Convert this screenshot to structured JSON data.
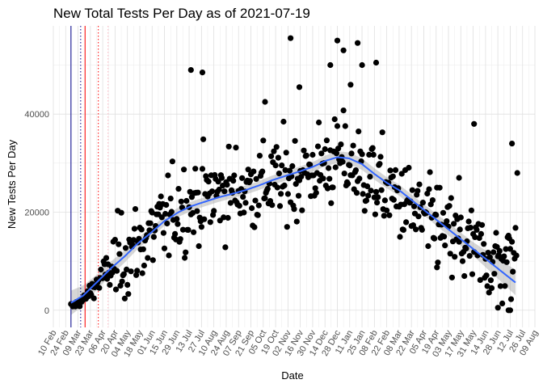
{
  "chart_data": {
    "type": "scatter",
    "title": "New Total Tests Per Day as of 2021-07-19",
    "xlabel": "Date",
    "ylabel": "New Tests Per Day",
    "x_range": [
      "2020-02-10",
      "2021-08-09"
    ],
    "ylim": [
      -3500,
      58000
    ],
    "y_ticks": [
      0,
      20000,
      40000
    ],
    "y_tick_labels": [
      "0",
      "20000",
      "40000"
    ],
    "x_ticks": [
      "2020-02-10",
      "2020-02-24",
      "2020-03-09",
      "2020-03-23",
      "2020-04-06",
      "2020-04-20",
      "2020-05-04",
      "2020-05-18",
      "2020-06-01",
      "2020-06-15",
      "2020-06-29",
      "2020-07-13",
      "2020-07-27",
      "2020-08-10",
      "2020-08-24",
      "2020-09-07",
      "2020-09-21",
      "2020-10-05",
      "2020-10-19",
      "2020-11-02",
      "2020-11-16",
      "2020-11-30",
      "2020-12-14",
      "2020-12-28",
      "2021-01-11",
      "2021-01-25",
      "2021-02-08",
      "2021-02-22",
      "2021-03-08",
      "2021-03-22",
      "2021-04-05",
      "2021-04-19",
      "2021-05-03",
      "2021-05-17",
      "2021-05-31",
      "2021-06-14",
      "2021-06-28",
      "2021-07-12",
      "2021-07-26",
      "2021-08-09"
    ],
    "x_tick_labels": [
      "10 Feb",
      "24 Feb",
      "09 Mar",
      "23 Mar",
      "06 Apr",
      "20 Apr",
      "04 May",
      "18 May",
      "01 Jun",
      "15 Jun",
      "29 Jun",
      "13 Jul",
      "27 Jul",
      "10 Aug",
      "24 Aug",
      "07 Sep",
      "21 Sep",
      "05 Oct",
      "19 Oct",
      "02 Nov",
      "16 Nov",
      "30 Nov",
      "14 Dec",
      "28 Dec",
      "11 Jan",
      "25 Jan",
      "08 Feb",
      "22 Feb",
      "08 Mar",
      "22 Mar",
      "05 Apr",
      "19 Apr",
      "03 May",
      "17 May",
      "31 May",
      "14 Jun",
      "28 Jun",
      "12 Jul",
      "26 Jul",
      "09 Aug"
    ],
    "grid": true,
    "vlines": [
      {
        "date": "2020-03-01",
        "color": "#00008b",
        "style": "solid"
      },
      {
        "date": "2020-03-12",
        "color": "#00008b",
        "style": "dotted"
      },
      {
        "date": "2020-03-17",
        "color": "#ff0000",
        "style": "solid"
      },
      {
        "date": "2020-04-01",
        "color": "#ff0000",
        "style": "dotted"
      },
      {
        "date": "2020-04-12",
        "color": "#ffb6c1",
        "style": "dotted"
      }
    ],
    "point_color": "#000000",
    "smooth_color": "#3366ff",
    "ribbon_color": "#999999",
    "scatter_anchors": [
      [
        "2020-03-01",
        700
      ],
      [
        "2020-03-15",
        2000
      ],
      [
        "2020-04-01",
        6000
      ],
      [
        "2020-05-01",
        11000
      ],
      [
        "2020-06-01",
        15500
      ],
      [
        "2020-07-01",
        20500
      ],
      [
        "2020-08-01",
        23000
      ],
      [
        "2020-09-01",
        24500
      ],
      [
        "2020-10-01",
        25500
      ],
      [
        "2020-11-01",
        26500
      ],
      [
        "2020-12-01",
        28500
      ],
      [
        "2021-01-01",
        31000
      ],
      [
        "2021-02-01",
        27000
      ],
      [
        "2021-03-01",
        23500
      ],
      [
        "2021-04-01",
        19000
      ],
      [
        "2021-05-01",
        15000
      ],
      [
        "2021-06-01",
        12000
      ],
      [
        "2021-07-01",
        9500
      ],
      [
        "2021-07-19",
        11000
      ]
    ],
    "outliers": [
      [
        "2020-07-15",
        49000
      ],
      [
        "2020-07-28",
        48500
      ],
      [
        "2020-11-05",
        55500
      ],
      [
        "2020-12-28",
        55000
      ],
      [
        "2021-01-04",
        53000
      ],
      [
        "2021-01-20",
        54500
      ],
      [
        "2021-01-25",
        50000
      ],
      [
        "2021-02-10",
        50500
      ],
      [
        "2020-12-20",
        50000
      ],
      [
        "2021-01-12",
        46000
      ],
      [
        "2020-11-15",
        45500
      ],
      [
        "2021-06-01",
        38000
      ],
      [
        "2021-07-14",
        34000
      ],
      [
        "2021-07-20",
        28000
      ],
      [
        "2020-10-07",
        42500
      ],
      [
        "2021-06-28",
        500
      ],
      [
        "2021-07-10",
        0
      ],
      [
        "2021-07-12",
        0
      ],
      [
        "2021-05-15",
        27000
      ],
      [
        "2021-04-20",
        25000
      ]
    ],
    "smooth_curve": [
      [
        "2020-03-01",
        1500
      ],
      [
        "2020-03-15",
        3000
      ],
      [
        "2020-04-01",
        6000
      ],
      [
        "2020-04-15",
        8500
      ],
      [
        "2020-05-01",
        11000
      ],
      [
        "2020-05-15",
        13500
      ],
      [
        "2020-06-01",
        16000
      ],
      [
        "2020-06-15",
        18200
      ],
      [
        "2020-07-01",
        20000
      ],
      [
        "2020-07-15",
        21200
      ],
      [
        "2020-08-01",
        22200
      ],
      [
        "2020-08-15",
        23000
      ],
      [
        "2020-09-01",
        23800
      ],
      [
        "2020-09-15",
        24500
      ],
      [
        "2020-10-01",
        25500
      ],
      [
        "2020-10-15",
        26500
      ],
      [
        "2020-11-01",
        27500
      ],
      [
        "2020-11-15",
        28300
      ],
      [
        "2020-12-01",
        29300
      ],
      [
        "2020-12-15",
        30500
      ],
      [
        "2020-12-28",
        31200
      ],
      [
        "2021-01-10",
        31000
      ],
      [
        "2021-01-25",
        29800
      ],
      [
        "2021-02-08",
        27800
      ],
      [
        "2021-02-22",
        26000
      ],
      [
        "2021-03-08",
        24500
      ],
      [
        "2021-03-22",
        22500
      ],
      [
        "2021-04-05",
        20500
      ],
      [
        "2021-04-19",
        18500
      ],
      [
        "2021-05-03",
        16500
      ],
      [
        "2021-05-17",
        14500
      ],
      [
        "2021-05-31",
        12500
      ],
      [
        "2021-06-14",
        10500
      ],
      [
        "2021-06-28",
        8500
      ],
      [
        "2021-07-12",
        6500
      ],
      [
        "2021-07-19",
        5500
      ]
    ],
    "ribbon_halfwidth": [
      [
        "2020-03-01",
        2500
      ],
      [
        "2020-04-01",
        1500
      ],
      [
        "2020-06-01",
        1000
      ],
      [
        "2020-09-01",
        900
      ],
      [
        "2020-12-01",
        1000
      ],
      [
        "2021-01-01",
        1200
      ],
      [
        "2021-04-01",
        1100
      ],
      [
        "2021-06-01",
        1400
      ],
      [
        "2021-07-19",
        2600
      ]
    ]
  }
}
